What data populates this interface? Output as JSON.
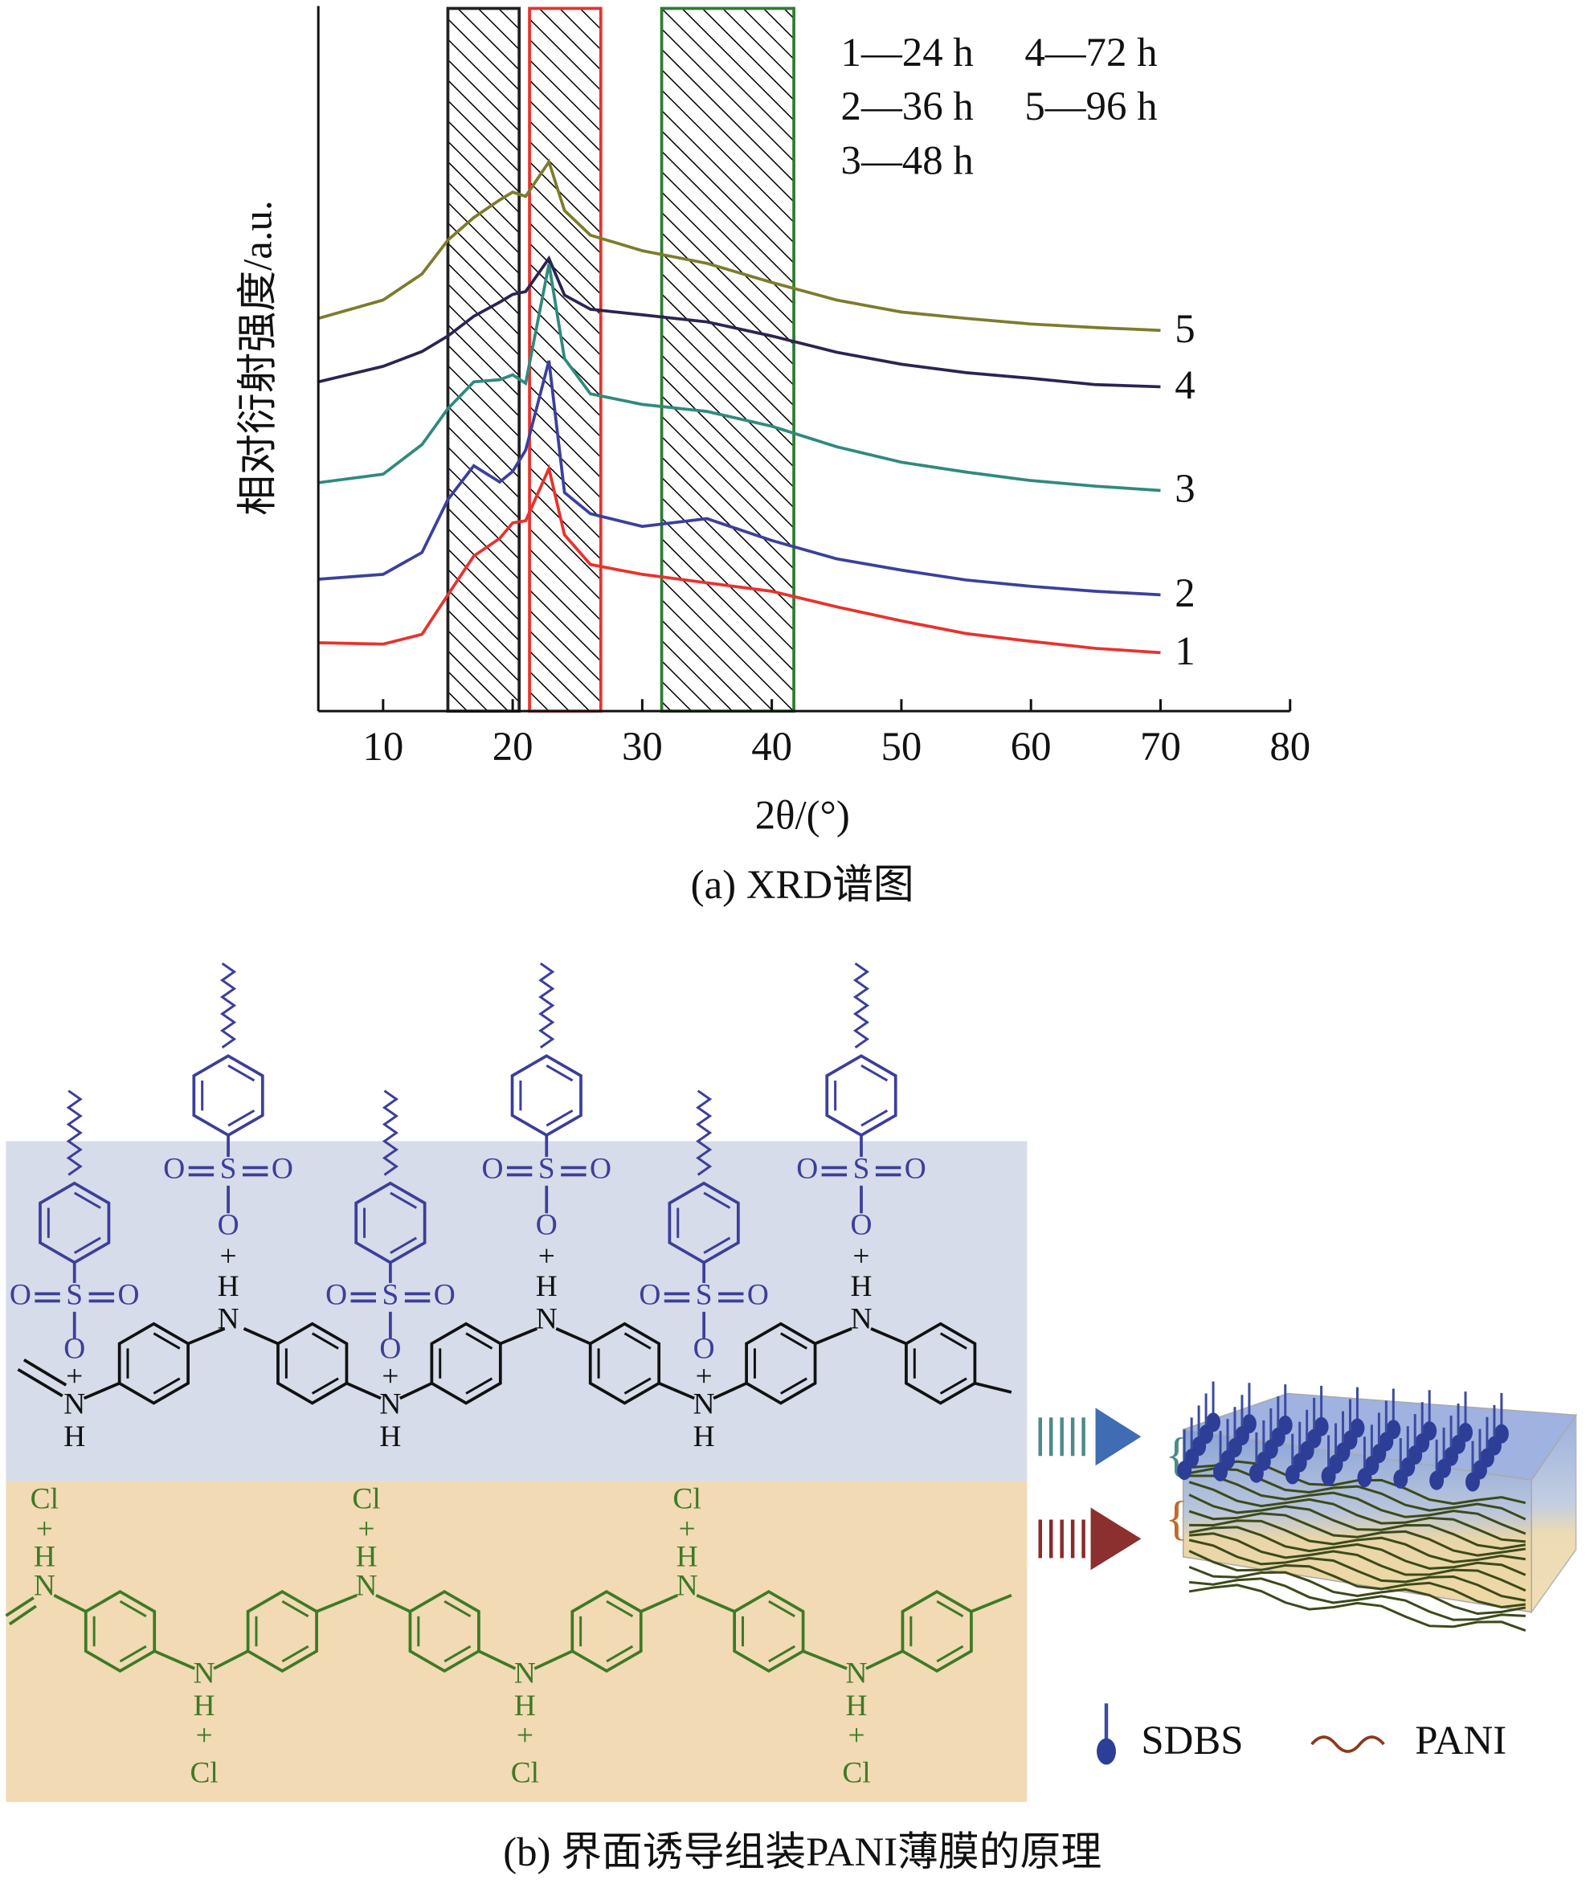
{
  "chart_data": {
    "type": "line",
    "xlabel": "2θ/(°)",
    "ylabel": "相对衍射强度/a.u.",
    "caption": "(a) XRD谱图",
    "xlim": [
      5,
      80
    ],
    "ylim": [
      0,
      100
    ],
    "xticks": [
      10,
      20,
      30,
      40,
      50,
      60,
      70,
      80
    ],
    "x": [
      5,
      10,
      13,
      15,
      17,
      19,
      20,
      21,
      22.8,
      24,
      26,
      30,
      35,
      40,
      45,
      50,
      55,
      60,
      65,
      70
    ],
    "series": [
      {
        "name": "1",
        "color": "#e8322c",
        "values": [
          9.7,
          9.5,
          10.9,
          16.5,
          22,
          24.5,
          26.7,
          27,
          34.4,
          25,
          20.8,
          19.4,
          18.2,
          17,
          14.8,
          12.8,
          11,
          9.9,
          8.9,
          8.3
        ]
      },
      {
        "name": "2",
        "color": "#3b409c",
        "values": [
          18.7,
          19.4,
          22.5,
          30,
          34.8,
          32.5,
          34,
          37,
          49.7,
          31,
          28,
          26.2,
          27.3,
          24.2,
          21.6,
          20,
          18.6,
          17.7,
          17,
          16.5
        ]
      },
      {
        "name": "3",
        "color": "#2f8a7c",
        "values": [
          32.4,
          33.6,
          37.8,
          42.9,
          46.7,
          47,
          47.7,
          46.5,
          63.4,
          50,
          45,
          43.5,
          42.5,
          40.4,
          37.5,
          35.3,
          33.9,
          32.7,
          31.9,
          31.3
        ]
      },
      {
        "name": "4",
        "color": "#2b2452",
        "values": [
          46.7,
          48.9,
          51,
          53.2,
          56,
          58,
          59.1,
          59.5,
          64.2,
          59,
          57,
          56.2,
          55.2,
          53.2,
          50.9,
          49.2,
          48,
          47.2,
          46.3,
          46
        ]
      },
      {
        "name": "5",
        "color": "#7c7c2c",
        "values": [
          55.7,
          58.3,
          62,
          66.8,
          70,
          72.5,
          73.6,
          73,
          77.9,
          71,
          67.5,
          65.3,
          63.5,
          60.8,
          58.3,
          56.6,
          55.7,
          54.9,
          54.4,
          54
        ]
      }
    ],
    "regions": [
      {
        "x": [
          15,
          20.5
        ],
        "color": "#222222"
      },
      {
        "x": [
          21.3,
          26.8
        ],
        "color": "#e8322c"
      },
      {
        "x": [
          31.5,
          41.7
        ],
        "color": "#2e7d32"
      }
    ],
    "annotations": [
      "1—24 h",
      "4—72 h",
      "2—36 h",
      "5—96 h",
      "3—48 h"
    ]
  },
  "diagram": {
    "caption": "(b) 界面诱导组装PANI薄膜的原理",
    "dopant_groups": [
      {
        "atoms": [
          "O",
          "S",
          "O",
          "O",
          "+",
          "N",
          "H"
        ]
      },
      {
        "atoms": [
          "O",
          "S",
          "O",
          "O",
          "+",
          "H",
          "N"
        ]
      },
      {
        "atoms": [
          "O",
          "S",
          "O",
          "O",
          "+",
          "N",
          "H"
        ]
      },
      {
        "atoms": [
          "O",
          "S",
          "O",
          "O",
          "+",
          "H",
          "N"
        ]
      },
      {
        "atoms": [
          "O",
          "S",
          "O",
          "O",
          "+",
          "N",
          "H"
        ]
      },
      {
        "atoms": [
          "O",
          "S",
          "O",
          "O",
          "+",
          "H",
          "N"
        ]
      }
    ],
    "acid_groups": [
      {
        "atoms": [
          "Cl",
          "+",
          "H",
          "N"
        ]
      },
      {
        "atoms": [
          "N",
          "H",
          "+",
          "Cl"
        ]
      },
      {
        "atoms": [
          "Cl",
          "+",
          "H",
          "N"
        ]
      },
      {
        "atoms": [
          "N",
          "H",
          "+",
          "Cl"
        ]
      },
      {
        "atoms": [
          "Cl",
          "+",
          "H",
          "N"
        ]
      },
      {
        "atoms": [
          "N",
          "H",
          "+",
          "Cl"
        ]
      }
    ],
    "legend": [
      "SDBS",
      "PANI"
    ]
  }
}
